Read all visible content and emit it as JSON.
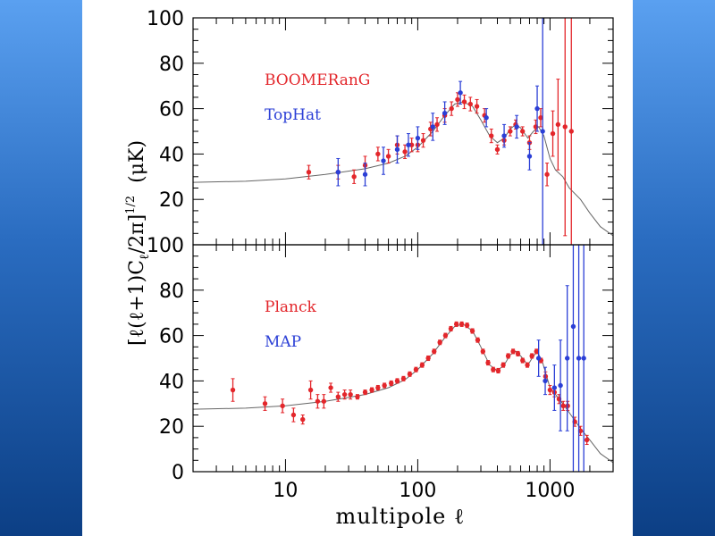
{
  "colors": {
    "red": "#e3262b",
    "blue": "#2b3fd6",
    "theory": "#666666",
    "frame": "#000000",
    "background": "#ffffff",
    "side_band": "#2a6cc0"
  },
  "chart_data": [
    {
      "type": "scatter",
      "panel": "top",
      "xscale": "log",
      "xlim": [
        2,
        3000
      ],
      "ylim": [
        0,
        100
      ],
      "yticks": [
        20,
        40,
        60,
        80,
        100
      ],
      "xlabel": "multipole ℓ",
      "ylabel": "[ℓ(ℓ+1)Cℓ/2π]^1/2 (μK)",
      "series": [
        {
          "name": "BOOMERanG",
          "color_key": "red",
          "points": [
            {
              "x": 15,
              "y": 32,
              "err": 3
            },
            {
              "x": 25,
              "y": 32,
              "err": 3
            },
            {
              "x": 33,
              "y": 30,
              "err": 3
            },
            {
              "x": 40,
              "y": 35,
              "err": 4
            },
            {
              "x": 50,
              "y": 40,
              "err": 3
            },
            {
              "x": 60,
              "y": 39,
              "err": 3
            },
            {
              "x": 70,
              "y": 44,
              "err": 4
            },
            {
              "x": 80,
              "y": 41,
              "err": 3
            },
            {
              "x": 90,
              "y": 44,
              "err": 3
            },
            {
              "x": 100,
              "y": 44,
              "err": 3
            },
            {
              "x": 110,
              "y": 46,
              "err": 3
            },
            {
              "x": 125,
              "y": 51,
              "err": 3
            },
            {
              "x": 140,
              "y": 53,
              "err": 3
            },
            {
              "x": 160,
              "y": 57,
              "err": 3
            },
            {
              "x": 180,
              "y": 60,
              "err": 3
            },
            {
              "x": 200,
              "y": 64,
              "err": 3
            },
            {
              "x": 225,
              "y": 63,
              "err": 3
            },
            {
              "x": 250,
              "y": 62,
              "err": 3
            },
            {
              "x": 280,
              "y": 61,
              "err": 3
            },
            {
              "x": 320,
              "y": 57,
              "err": 3
            },
            {
              "x": 360,
              "y": 48,
              "err": 3
            },
            {
              "x": 400,
              "y": 42,
              "err": 2
            },
            {
              "x": 450,
              "y": 46,
              "err": 2
            },
            {
              "x": 500,
              "y": 50,
              "err": 2
            },
            {
              "x": 550,
              "y": 53,
              "err": 2
            },
            {
              "x": 620,
              "y": 50,
              "err": 2
            },
            {
              "x": 700,
              "y": 45,
              "err": 3
            },
            {
              "x": 780,
              "y": 52,
              "err": 3
            },
            {
              "x": 850,
              "y": 56,
              "err": 4
            },
            {
              "x": 950,
              "y": 31,
              "err": 5
            },
            {
              "x": 1050,
              "y": 49,
              "err": 10
            },
            {
              "x": 1150,
              "y": 53,
              "err": 20
            },
            {
              "x": 1300,
              "y": 52,
              "err": 48
            },
            {
              "x": 1450,
              "y": 50,
              "err": 52
            }
          ]
        },
        {
          "name": "TopHat",
          "color_key": "blue",
          "points": [
            {
              "x": 25,
              "y": 32,
              "err": 6
            },
            {
              "x": 40,
              "y": 31,
              "err": 5
            },
            {
              "x": 55,
              "y": 37,
              "err": 6
            },
            {
              "x": 70,
              "y": 42,
              "err": 6
            },
            {
              "x": 85,
              "y": 44,
              "err": 5
            },
            {
              "x": 100,
              "y": 47,
              "err": 5
            },
            {
              "x": 130,
              "y": 52,
              "err": 6
            },
            {
              "x": 160,
              "y": 58,
              "err": 5
            },
            {
              "x": 210,
              "y": 67,
              "err": 5
            },
            {
              "x": 330,
              "y": 56,
              "err": 4
            },
            {
              "x": 450,
              "y": 48,
              "err": 5
            },
            {
              "x": 560,
              "y": 52,
              "err": 5
            },
            {
              "x": 700,
              "y": 39,
              "err": 6
            },
            {
              "x": 800,
              "y": 60,
              "err": 10
            },
            {
              "x": 880,
              "y": 50,
              "err": 50
            }
          ]
        }
      ],
      "legend": [
        "BOOMERanG",
        "TopHat"
      ],
      "theory_curve": [
        {
          "x": 2,
          "y": 27.5
        },
        {
          "x": 5,
          "y": 28
        },
        {
          "x": 10,
          "y": 29
        },
        {
          "x": 20,
          "y": 31
        },
        {
          "x": 40,
          "y": 33.5
        },
        {
          "x": 60,
          "y": 36
        },
        {
          "x": 80,
          "y": 39
        },
        {
          "x": 100,
          "y": 43
        },
        {
          "x": 130,
          "y": 50
        },
        {
          "x": 160,
          "y": 57
        },
        {
          "x": 190,
          "y": 62
        },
        {
          "x": 220,
          "y": 63
        },
        {
          "x": 260,
          "y": 61
        },
        {
          "x": 300,
          "y": 55
        },
        {
          "x": 350,
          "y": 48
        },
        {
          "x": 400,
          "y": 45
        },
        {
          "x": 450,
          "y": 47
        },
        {
          "x": 500,
          "y": 51
        },
        {
          "x": 550,
          "y": 53
        },
        {
          "x": 600,
          "y": 51.5
        },
        {
          "x": 680,
          "y": 47
        },
        {
          "x": 750,
          "y": 50
        },
        {
          "x": 820,
          "y": 52
        },
        {
          "x": 900,
          "y": 48
        },
        {
          "x": 1000,
          "y": 38
        },
        {
          "x": 1100,
          "y": 33
        },
        {
          "x": 1250,
          "y": 30
        },
        {
          "x": 1400,
          "y": 25
        },
        {
          "x": 1700,
          "y": 20
        },
        {
          "x": 2000,
          "y": 14
        },
        {
          "x": 2400,
          "y": 8
        },
        {
          "x": 3000,
          "y": 4
        }
      ]
    },
    {
      "type": "scatter",
      "panel": "bottom",
      "xscale": "log",
      "xlim": [
        2,
        3000
      ],
      "ylim": [
        0,
        100
      ],
      "yticks": [
        0,
        20,
        40,
        60,
        80,
        100
      ],
      "xticks": [
        10,
        100,
        1000
      ],
      "xtick_labels": [
        "10",
        "100",
        "1000"
      ],
      "series": [
        {
          "name": "Planck",
          "color_key": "red",
          "points": [
            {
              "x": 4,
              "y": 36,
              "err": 5
            },
            {
              "x": 7,
              "y": 30,
              "err": 3
            },
            {
              "x": 9.5,
              "y": 29,
              "err": 3
            },
            {
              "x": 11.5,
              "y": 25,
              "err": 3
            },
            {
              "x": 13.5,
              "y": 23,
              "err": 2
            },
            {
              "x": 15.5,
              "y": 36,
              "err": 4
            },
            {
              "x": 17.5,
              "y": 31,
              "err": 3
            },
            {
              "x": 19.5,
              "y": 31,
              "err": 3
            },
            {
              "x": 22,
              "y": 37,
              "err": 2
            },
            {
              "x": 25,
              "y": 33,
              "err": 2
            },
            {
              "x": 28,
              "y": 34,
              "err": 2
            },
            {
              "x": 31,
              "y": 34,
              "err": 2
            },
            {
              "x": 35,
              "y": 33,
              "err": 1
            },
            {
              "x": 40,
              "y": 35,
              "err": 1
            },
            {
              "x": 45,
              "y": 36,
              "err": 1
            },
            {
              "x": 50,
              "y": 37,
              "err": 1
            },
            {
              "x": 56,
              "y": 38,
              "err": 1
            },
            {
              "x": 63,
              "y": 39,
              "err": 1
            },
            {
              "x": 70,
              "y": 40,
              "err": 1
            },
            {
              "x": 78,
              "y": 41,
              "err": 1
            },
            {
              "x": 87,
              "y": 43,
              "err": 1
            },
            {
              "x": 97,
              "y": 45,
              "err": 1
            },
            {
              "x": 108,
              "y": 47,
              "err": 1
            },
            {
              "x": 120,
              "y": 50,
              "err": 1
            },
            {
              "x": 133,
              "y": 53,
              "err": 1
            },
            {
              "x": 147,
              "y": 57,
              "err": 1
            },
            {
              "x": 162,
              "y": 60,
              "err": 1
            },
            {
              "x": 178,
              "y": 63,
              "err": 1
            },
            {
              "x": 196,
              "y": 65,
              "err": 1
            },
            {
              "x": 215,
              "y": 65,
              "err": 1
            },
            {
              "x": 236,
              "y": 64.5,
              "err": 1
            },
            {
              "x": 259,
              "y": 62,
              "err": 1
            },
            {
              "x": 284,
              "y": 58,
              "err": 1
            },
            {
              "x": 311,
              "y": 53,
              "err": 1
            },
            {
              "x": 340,
              "y": 48,
              "err": 1
            },
            {
              "x": 372,
              "y": 45,
              "err": 1
            },
            {
              "x": 406,
              "y": 44.5,
              "err": 1
            },
            {
              "x": 443,
              "y": 47,
              "err": 1
            },
            {
              "x": 483,
              "y": 51,
              "err": 1
            },
            {
              "x": 526,
              "y": 53,
              "err": 1
            },
            {
              "x": 572,
              "y": 52,
              "err": 1
            },
            {
              "x": 621,
              "y": 49,
              "err": 1
            },
            {
              "x": 674,
              "y": 47,
              "err": 1
            },
            {
              "x": 730,
              "y": 51,
              "err": 1
            },
            {
              "x": 790,
              "y": 53,
              "err": 1
            },
            {
              "x": 855,
              "y": 49,
              "err": 1
            },
            {
              "x": 925,
              "y": 42,
              "err": 2
            },
            {
              "x": 1000,
              "y": 36,
              "err": 2
            },
            {
              "x": 1080,
              "y": 35,
              "err": 2
            },
            {
              "x": 1170,
              "y": 32,
              "err": 2
            },
            {
              "x": 1260,
              "y": 29,
              "err": 2
            },
            {
              "x": 1360,
              "y": 29,
              "err": 2
            },
            {
              "x": 1540,
              "y": 22,
              "err": 2
            },
            {
              "x": 1700,
              "y": 18,
              "err": 2
            },
            {
              "x": 1900,
              "y": 14,
              "err": 2
            }
          ]
        },
        {
          "name": "MAP",
          "color_key": "blue",
          "points": [
            {
              "x": 820,
              "y": 50,
              "err": 8
            },
            {
              "x": 920,
              "y": 40,
              "err": 6
            },
            {
              "x": 1080,
              "y": 37,
              "err": 10
            },
            {
              "x": 1200,
              "y": 38,
              "err": 20
            },
            {
              "x": 1350,
              "y": 50,
              "err": 32
            },
            {
              "x": 1500,
              "y": 64,
              "err": 66
            },
            {
              "x": 1650,
              "y": 50,
              "err": 60
            },
            {
              "x": 1800,
              "y": 50,
              "err": 60
            }
          ]
        }
      ],
      "legend": [
        "Planck",
        "MAP"
      ],
      "theory_curve": [
        {
          "x": 2,
          "y": 27.5
        },
        {
          "x": 5,
          "y": 28
        },
        {
          "x": 10,
          "y": 29
        },
        {
          "x": 20,
          "y": 31
        },
        {
          "x": 40,
          "y": 34
        },
        {
          "x": 60,
          "y": 37
        },
        {
          "x": 80,
          "y": 40.5
        },
        {
          "x": 100,
          "y": 45
        },
        {
          "x": 130,
          "y": 52
        },
        {
          "x": 160,
          "y": 59
        },
        {
          "x": 190,
          "y": 64
        },
        {
          "x": 220,
          "y": 65
        },
        {
          "x": 260,
          "y": 62
        },
        {
          "x": 300,
          "y": 55
        },
        {
          "x": 350,
          "y": 47
        },
        {
          "x": 400,
          "y": 44.5
        },
        {
          "x": 450,
          "y": 47
        },
        {
          "x": 500,
          "y": 51.5
        },
        {
          "x": 550,
          "y": 53
        },
        {
          "x": 600,
          "y": 51
        },
        {
          "x": 680,
          "y": 47
        },
        {
          "x": 750,
          "y": 51
        },
        {
          "x": 800,
          "y": 53
        },
        {
          "x": 880,
          "y": 48
        },
        {
          "x": 1000,
          "y": 37
        },
        {
          "x": 1100,
          "y": 34
        },
        {
          "x": 1250,
          "y": 30
        },
        {
          "x": 1400,
          "y": 26
        },
        {
          "x": 1700,
          "y": 19
        },
        {
          "x": 2000,
          "y": 14
        },
        {
          "x": 2400,
          "y": 8
        },
        {
          "x": 3000,
          "y": 4
        }
      ]
    }
  ],
  "labels": {
    "x_axis": "multipole ℓ",
    "y_axis_main": "[ℓ(ℓ+1)C",
    "y_axis_sub": "ℓ",
    "y_axis_tail": "/2π]",
    "y_axis_sup": "1/2",
    "y_axis_unit": "(μK)"
  }
}
